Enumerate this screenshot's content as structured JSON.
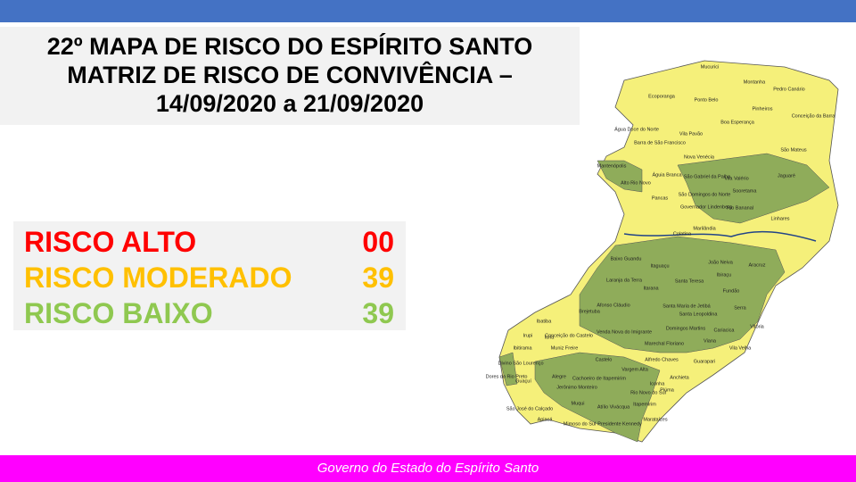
{
  "header": {
    "title_lines": [
      "22º MAPA DE RISCO DO ESPÍRITO SANTO",
      "MATRIZ DE RISCO DE CONVIVÊNCIA –",
      "14/09/2020 a 21/09/2020"
    ]
  },
  "legend": {
    "rows": [
      {
        "label": "RISCO ALTO",
        "count": "00",
        "color": "#ff0000"
      },
      {
        "label": "RISCO MODERADO",
        "count": "39",
        "color": "#ffc000"
      },
      {
        "label": "RISCO BAIXO",
        "count": "39",
        "color": "#8fc850"
      }
    ]
  },
  "map": {
    "low_color": "#8fac5a",
    "moderate_color": "#f5f07a",
    "labels": [
      "Mucurici",
      "Montanha",
      "Pedro Canário",
      "Ecoporanga",
      "Ponto Belo",
      "Pinheiros",
      "Conceição da Barra",
      "Boa Esperança",
      "Água Doce do Norte",
      "Barra de São Francisco",
      "Vila Pavão",
      "Nova Venécia",
      "São Mateus",
      "Mantenópolis",
      "Águia Branca",
      "São Gabriel da Palha",
      "Vila Valério",
      "Jaguaré",
      "Alto Rio Novo",
      "São Domingos do Norte",
      "Sooretama",
      "Pancas",
      "Governador Lindenberg",
      "Rio Bananal",
      "Linhares",
      "Marilândia",
      "Colatina",
      "Baixo Guandu",
      "Itaguaçu",
      "João Neiva",
      "Aracruz",
      "Ibiraçu",
      "Laranja da Terra",
      "Santa Teresa",
      "Itarana",
      "Fundão",
      "Afonso Cláudio",
      "Santa Maria de Jetibá",
      "Serra",
      "Brejetuba",
      "Santa Leopoldina",
      "Ibatiba",
      "Conceição do Castelo",
      "Venda Nova do Imigrante",
      "Domingos Martins",
      "Cariacica",
      "Vitória",
      "Irupi",
      "Iúna",
      "Marechal Floriano",
      "Viana",
      "Ibitirama",
      "Muniz Freire",
      "Vila Velha",
      "Alfredo Chaves",
      "Guarapari",
      "Divino São Lourenço",
      "Castelo",
      "Dores do Rio Preto",
      "Guaçuí",
      "Alegre",
      "Vargem Alta",
      "Cachoeiro de Itapemirim",
      "Anchieta",
      "Iconha",
      "Rio Novo do Sul",
      "Jerônimo Monteiro",
      "Piúma",
      "São José do Calçado",
      "Muqui",
      "Atílio Vivácqua",
      "Itapemirim",
      "Apiacá",
      "Mimoso do Sul",
      "Presidente Kennedy",
      "Marataízes"
    ]
  },
  "footer": {
    "text": "Governo do Estado do Espírito Santo"
  }
}
